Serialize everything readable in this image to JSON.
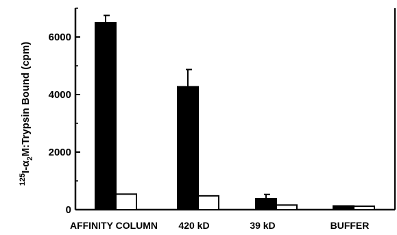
{
  "chart_data": {
    "type": "bar",
    "title": "",
    "ylabel": "125I-α2M:Trypsin Bound (cpm)",
    "ylabel_parts": {
      "superscript": "125",
      "main": "I-α",
      "subscript": "2",
      "tail": "M:Trypsin Bound (cpm)"
    },
    "xlabel": "",
    "ylim": [
      0,
      7000
    ],
    "yticks": [
      0,
      2000,
      4000,
      6000
    ],
    "categories": [
      "AFFINITY COLUMN",
      "420 kD",
      "39 kD",
      "BUFFER"
    ],
    "series": [
      {
        "color": "#000000",
        "values": [
          6500,
          4270,
          380,
          130
        ],
        "errors": [
          250,
          600,
          150,
          0
        ]
      },
      {
        "color": "#ffffff",
        "values": [
          540,
          480,
          160,
          120
        ],
        "errors": [
          0,
          0,
          0,
          0
        ]
      }
    ],
    "grid": false,
    "legend": "none"
  }
}
